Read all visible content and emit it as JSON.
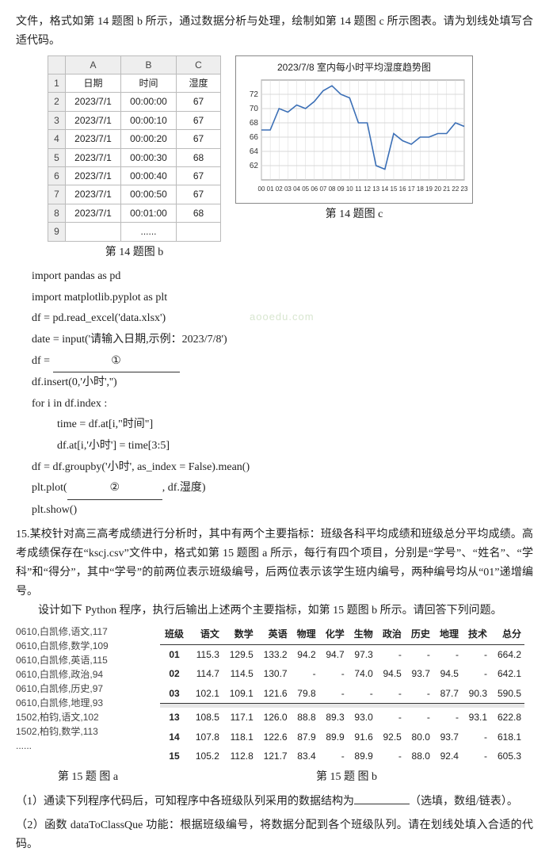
{
  "p_intro": "文件，格式如第 14 题图 b 所示，通过数据分析与处理，绘制如第 14 题图 c 所示图表。请为划线处填写合适代码。",
  "watermark": "aooedu.com",
  "sheet": {
    "col_headers": [
      "",
      "A",
      "B",
      "C"
    ],
    "row_header_1": "1",
    "r1c1": "日期",
    "r1c2": "时间",
    "r1c3": "湿度",
    "row_header_2": "2",
    "r2c1": "2023/7/1",
    "r2c2": "00:00:00",
    "r2c3": "67",
    "row_header_3": "3",
    "r3c1": "2023/7/1",
    "r3c2": "00:00:10",
    "r3c3": "67",
    "row_header_4": "4",
    "r4c1": "2023/7/1",
    "r4c2": "00:00:20",
    "r4c3": "67",
    "row_header_5": "5",
    "r5c1": "2023/7/1",
    "r5c2": "00:00:30",
    "r5c3": "68",
    "row_header_6": "6",
    "r6c1": "2023/7/1",
    "r6c2": "00:00:40",
    "r6c3": "67",
    "row_header_7": "7",
    "r7c1": "2023/7/1",
    "r7c2": "00:00:50",
    "r7c3": "67",
    "row_header_8": "8",
    "r8c1": "2023/7/1",
    "r8c2": "00:01:00",
    "r8c3": "68",
    "row_header_9": "9",
    "r9c1": "",
    "r9c2": "......",
    "r9c3": "",
    "caption": "第 14 题图 b"
  },
  "chart": {
    "title": "2023/7/8 室内每小时平均湿度趋势图",
    "caption": "第 14 题图 c",
    "y_ticks": [
      62,
      64,
      66,
      68,
      70,
      72
    ],
    "y_min": 60,
    "y_max": 74,
    "x_labels": [
      "00",
      "01",
      "02",
      "03",
      "04",
      "05",
      "06",
      "07",
      "08",
      "09",
      "10",
      "11",
      "12",
      "13",
      "14",
      "15",
      "16",
      "17",
      "18",
      "19",
      "20",
      "21",
      "22",
      "23"
    ],
    "values": [
      67,
      67,
      70,
      69.5,
      70.5,
      70,
      71,
      72.5,
      73.2,
      72,
      71.5,
      68,
      68,
      62,
      61.5,
      66.5,
      65.5,
      65,
      66,
      66,
      66.5,
      66.5,
      68,
      67.5
    ],
    "line_color": "#3b6fb6",
    "grid_color": "#d8d8d8",
    "axis_color": "#888",
    "background": "#ffffff"
  },
  "code14": {
    "l1": "import pandas as pd",
    "l2": "import matplotlib.pyplot as plt",
    "l3": "df = pd.read_excel('data.xlsx')",
    "l4": "date = input('请输入日期,示例：2023/7/8')",
    "l5a": "df = ",
    "l5blank": "①",
    "l6": "df.insert(0,'小时','')",
    "l7": "for i in df.index :",
    "l8": "time = df.at[i,\"时间\"]",
    "l9": "df.at[i,'小时'] = time[3:5]",
    "l10": "df = df.groupby('小时', as_index = False).mean()",
    "l11a": "plt.plot(",
    "l11blank": "②",
    "l11b": ", df.湿度)",
    "l12": "plt.show()"
  },
  "q15_intro": "15.某校针对高三高考成绩进行分析时，其中有两个主要指标：班级各科平均成绩和班级总分平均成绩。高考成绩保存在“kscj.csv”文件中，格式如第 15 题图 a 所示，每行有四个项目，分别是“学号”、“姓名”、“学科”和“得分”，其中“学号”的前两位表示班级编号，后两位表示该学生班内编号，两种编号均从“01”递增编号。",
  "q15_task": "设计如下 Python 程序，执行后输出上述两个主要指标，如第 15 题图 b 所示。请回答下列问题。",
  "csv": {
    "l1": "0610,白凯修,语文,117",
    "l2": "0610,白凯修,数学,109",
    "l3": "0610,白凯修,英语,115",
    "l4": "0610,白凯修,政治,94",
    "l5": "0610,白凯修,历史,97",
    "l6": "0610,白凯修,地理,93",
    "l7": "1502,柏钧,语文,102",
    "l8": "1502,柏钧,数学,113",
    "l9": "......"
  },
  "out": {
    "headers": [
      "班级",
      "语文",
      "数学",
      "英语",
      "物理",
      "化学",
      "生物",
      "政治",
      "历史",
      "地理",
      "技术",
      "总分"
    ],
    "rows_top": [
      [
        "01",
        "115.3",
        "129.5",
        "133.2",
        "94.2",
        "94.7",
        "97.3",
        "-",
        "-",
        "-",
        "-",
        "664.2"
      ],
      [
        "02",
        "114.7",
        "114.5",
        "130.7",
        "-",
        "-",
        "74.0",
        "94.5",
        "93.7",
        "94.5",
        "-",
        "642.1"
      ],
      [
        "03",
        "102.1",
        "109.1",
        "121.6",
        "79.8",
        "-",
        "-",
        "-",
        "-",
        "87.7",
        "90.3",
        "590.5"
      ]
    ],
    "rows_bottom": [
      [
        "13",
        "108.5",
        "117.1",
        "126.0",
        "88.8",
        "89.3",
        "93.0",
        "-",
        "-",
        "-",
        "93.1",
        "622.8"
      ],
      [
        "14",
        "107.8",
        "118.1",
        "122.6",
        "87.9",
        "89.9",
        "91.6",
        "92.5",
        "80.0",
        "93.7",
        "-",
        "618.1"
      ],
      [
        "15",
        "105.2",
        "112.8",
        "121.7",
        "83.4",
        "-",
        "89.9",
        "-",
        "88.0",
        "92.4",
        "-",
        "605.3"
      ]
    ],
    "caption_a": "第 15 题   图 a",
    "caption_b": "第 15 题   图 b"
  },
  "q15_1a": "（1）通读下列程序代码后，可知程序中各班级队列采用的数据结构为",
  "q15_1b": "（选填，数组/链表）。",
  "q15_2": "（2）函数 dataToClassQue 功能：根据班级编号，将数据分配到各个班级队列。请在划线处填入合适的代码。"
}
